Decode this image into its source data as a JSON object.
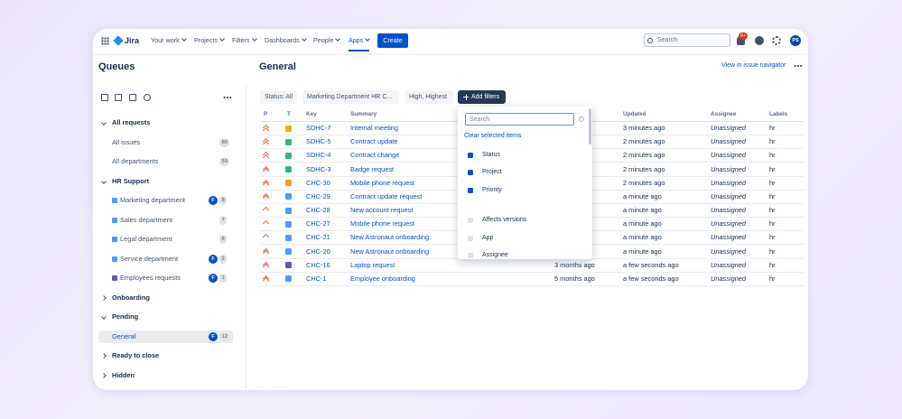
{
  "nav": {
    "logo": "Jira",
    "items": [
      "Your work",
      "Projects",
      "Filters",
      "Dashboards",
      "People",
      "Apps"
    ],
    "active_item": 5,
    "create": "Create",
    "search_placeholder": "Search",
    "notification_badge": "9+",
    "avatar": "PS"
  },
  "sidebar": {
    "title": "Queues",
    "groups": [
      {
        "name": "All requests",
        "expanded": true,
        "items": [
          {
            "name": "All issues",
            "count": 80
          },
          {
            "name": "All departments",
            "count": 59
          }
        ]
      },
      {
        "name": "HR Support",
        "expanded": true,
        "items": [
          {
            "name": "Marketing department",
            "badge": "F",
            "count": 8
          },
          {
            "name": "Sales department",
            "count": 7
          },
          {
            "name": "Legal department",
            "count": 8
          },
          {
            "name": "Service department",
            "badge": "F",
            "count": 2
          },
          {
            "name": "Employees requests",
            "badge": "F",
            "count": 1
          }
        ]
      },
      {
        "name": "Onboarding",
        "expanded": false,
        "items": []
      },
      {
        "name": "Pending",
        "expanded": true,
        "items": [
          {
            "name": "General",
            "badge": "F",
            "count": 12,
            "selected": true
          }
        ]
      },
      {
        "name": "Ready to close",
        "expanded": false,
        "items": []
      },
      {
        "name": "Hidden",
        "expanded": false,
        "items": []
      }
    ]
  },
  "main": {
    "title": "General",
    "view_link": "View in issue navigator",
    "filters": [
      "Status: All",
      "Marketing Department HR C...",
      "High, Highest"
    ],
    "add_filters": "Add filters",
    "table": {
      "columns": {
        "p": "P",
        "t": "T",
        "key": "Key",
        "summary": "Summary",
        "updated": "Updated",
        "assignee": "Assignee",
        "labels": "Labels"
      },
      "rows": [
        {
          "key": "SDHC-7",
          "summary": "Internal meeting",
          "updated": "3 minutes ago",
          "assignee": "Unassigned",
          "labels": "hr"
        },
        {
          "key": "SDHC-5",
          "summary": "Contract update",
          "updated": "2 minutes ago",
          "assignee": "Unassigned",
          "labels": "hr"
        },
        {
          "key": "SDHC-4",
          "summary": "Contract change",
          "updated": "2 minutes ago",
          "assignee": "Unassigned",
          "labels": "hr"
        },
        {
          "key": "SDHC-3",
          "summary": "Badge request",
          "updated": "2 minutes ago",
          "assignee": "Unassigned",
          "labels": "hr"
        },
        {
          "key": "CHC-30",
          "summary": "Mobile phone request",
          "updated": "2 minutes ago",
          "assignee": "Unassigned",
          "labels": "hr"
        },
        {
          "key": "CHC-29",
          "summary": "Contract update request",
          "updated": "a minute ago",
          "assignee": "Unassigned",
          "labels": "hr"
        },
        {
          "key": "CHC-28",
          "summary": "New account request",
          "updated": "a minute ago",
          "assignee": "Unassigned",
          "labels": "hr"
        },
        {
          "key": "CHC-27",
          "summary": "Mobile phone request",
          "updated": "a minute ago",
          "assignee": "Unassigned",
          "labels": "hr"
        },
        {
          "key": "CHC-21",
          "summary": "New Astronaut onboarding",
          "updated": "a minute ago",
          "assignee": "Unassigned",
          "labels": "hr"
        },
        {
          "key": "CHC-20",
          "summary": "New Astronaut onboarding",
          "updated": "a minute ago",
          "assignee": "Unassigned",
          "labels": "hr"
        },
        {
          "key": "CHC-16",
          "summary": "Laptop request",
          "created": "3 months ago",
          "updated": "a few seconds ago",
          "assignee": "Unassigned",
          "labels": "hr"
        },
        {
          "key": "CHC-1",
          "summary": "Employee onboarding",
          "created": "5 months ago",
          "updated": "a few seconds ago",
          "assignee": "Unassigned",
          "labels": "hr"
        }
      ]
    }
  },
  "filter_dropdown": {
    "search_placeholder": "Search",
    "clear": "Clear selected items",
    "options": [
      {
        "label": "Status",
        "checked": true
      },
      {
        "label": "Project",
        "checked": true
      },
      {
        "label": "Priority",
        "checked": true
      },
      {
        "label": "Affects versions",
        "checked": false
      },
      {
        "label": "App",
        "checked": false
      },
      {
        "label": "Assignee",
        "checked": false
      }
    ]
  }
}
